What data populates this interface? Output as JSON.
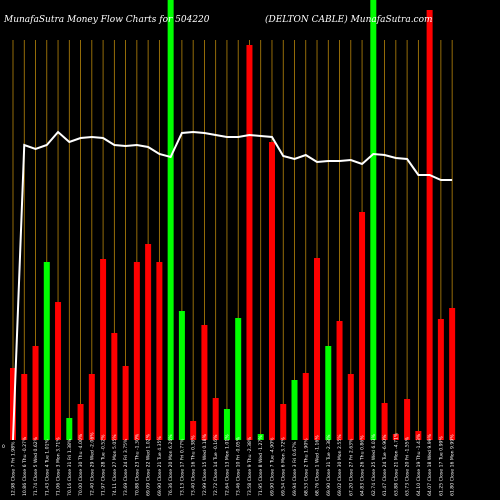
{
  "chart_data": {
    "type": "bar",
    "title_left": "MunafaSutra  Money Flow  Charts for 504220",
    "title_right": "(DELTON  CABLE) MunafaSutra.com",
    "y_axis_label": "0",
    "ylim": [
      0,
      440
    ],
    "grid": "vertical",
    "colors": {
      "up": "#00ff00",
      "down": "#ff0000",
      "grid": "#b8860b",
      "line": "#ffffff",
      "background": "#000000"
    },
    "bars": [
      {
        "label": "12.98 Close 7 Fri 1.98%",
        "value": 72,
        "dir": "down"
      },
      {
        "label": "10.86 Close 6 Thu -0.27%",
        "value": 66,
        "dir": "down"
      },
      {
        "label": "71.74 Close 5 Wed 0.62%",
        "value": 94,
        "dir": "down"
      },
      {
        "label": "71.43 Close 4 Tue 1.01%",
        "value": 178,
        "dir": "up"
      },
      {
        "label": "71.06 Close 3 Mon 3.71%",
        "value": 138,
        "dir": "down"
      },
      {
        "label": "70.16 Close 31 Fri 1.38%",
        "value": 22,
        "dir": "up"
      },
      {
        "label": "70.00 Close 30 Thu -4.00%",
        "value": 36,
        "dir": "down"
      },
      {
        "label": "72.40 Close 29 Wed -2.06%",
        "value": 66,
        "dir": "down"
      },
      {
        "label": "71.97 Close 28 Tue -0.52%",
        "value": 181,
        "dir": "down"
      },
      {
        "label": "74.11 Close 27 Mon 5.05%",
        "value": 107,
        "dir": "down"
      },
      {
        "label": "73.69 Close 24 Fri 3.75%",
        "value": 74,
        "dir": "down"
      },
      {
        "label": "70.88 Close 23 Thu -1.30%",
        "value": 178,
        "dir": "down"
      },
      {
        "label": "69.09 Close 22 Wed 1.02%",
        "value": 196,
        "dir": "down"
      },
      {
        "label": "69.90 Close 21 Tue 4.35%",
        "value": 178,
        "dir": "down"
      },
      {
        "label": "76.36 Close 20 Mon 6.26%",
        "value": 440,
        "dir": "up"
      },
      {
        "label": "73.13 Close 17 Fri 0.77%",
        "value": 129,
        "dir": "up"
      },
      {
        "label": "73.40 Close 16 Thu 0.38%",
        "value": 19,
        "dir": "down"
      },
      {
        "label": "72.99 Close 15 Wed 0.18%",
        "value": 115,
        "dir": "down"
      },
      {
        "label": "72.72 Close 14 Tue -0.16%",
        "value": 42,
        "dir": "down"
      },
      {
        "label": "72.64 Close 13 Mon 1.01%",
        "value": 31,
        "dir": "up"
      },
      {
        "label": "73.46 Close 10 Fri -0.05%",
        "value": 122,
        "dir": "up"
      },
      {
        "label": "73.58 Close 9 Thu -2.38%",
        "value": 395,
        "dir": "down"
      },
      {
        "label": "71.95 Close 8 Wed -1.27%",
        "value": 6,
        "dir": "up"
      },
      {
        "label": "69.90 Close 7 Tue -4.90%",
        "value": 298,
        "dir": "down"
      },
      {
        "label": "69.54 Close 6 Mon 3.72%",
        "value": 36,
        "dir": "down"
      },
      {
        "label": "69.94 Close 3 Fri 0.67%",
        "value": 60,
        "dir": "up"
      },
      {
        "label": "68.53 Close 2 Thu 1.90%",
        "value": 67,
        "dir": "down"
      },
      {
        "label": "68.76 Close 1 Wed -1.16%",
        "value": 182,
        "dir": "down"
      },
      {
        "label": "69.90 Close 31 Tue -2.38%",
        "value": 94,
        "dir": "up"
      },
      {
        "label": "69.02 Close 30 Mon 2.55%",
        "value": 119,
        "dir": "down"
      },
      {
        "label": "67.20 Close 27 Fri 2.63%",
        "value": 66,
        "dir": "down"
      },
      {
        "label": "64.83 Close 26 Thu 0.86%",
        "value": 228,
        "dir": "down"
      },
      {
        "label": "62.74 Close 25 Wed 6.03%",
        "value": 440,
        "dir": "up"
      },
      {
        "label": "61.47 Close 24 Tue -6.90%",
        "value": 37,
        "dir": "down"
      },
      {
        "label": "63.88 Close 21 Mon -4.71%",
        "value": 6,
        "dir": "down"
      },
      {
        "label": "63.73 Close 20 Fri -1.55%",
        "value": 41,
        "dir": "down"
      },
      {
        "label": "64.10 Close 19 Thu -1.43%",
        "value": 9,
        "dir": "down"
      },
      {
        "label": "64.07 Close 18 Wed 9.99%",
        "value": 430,
        "dir": "down"
      },
      {
        "label": "61.25 Close 17 Tue 0.99%",
        "value": 121,
        "dir": "down"
      },
      {
        "label": "61.80 Close 16 Mon 9.99%",
        "value": 132,
        "dir": "down"
      }
    ],
    "line": [
      0,
      295,
      291,
      295,
      308,
      298,
      302,
      303,
      302,
      295,
      294,
      295,
      293,
      286,
      283,
      307,
      308,
      307,
      305,
      303,
      303,
      305,
      304,
      303,
      284,
      281,
      285,
      278,
      279,
      279,
      280,
      276,
      286,
      285,
      282,
      281,
      265,
      265,
      260,
      260
    ]
  }
}
